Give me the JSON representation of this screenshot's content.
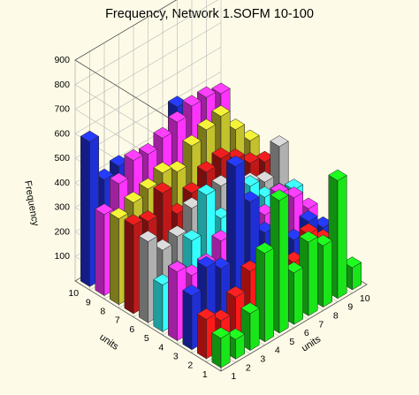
{
  "chart_data": {
    "type": "bar3d",
    "title": "Frequency,  Network 1.SOFM 10-100",
    "xlabel": "units",
    "ylabel": "units",
    "zlabel": "Frequency",
    "x_ticks": [
      "1",
      "2",
      "3",
      "4",
      "5",
      "6",
      "7",
      "8",
      "9",
      "10"
    ],
    "y_ticks": [
      "1",
      "2",
      "3",
      "4",
      "5",
      "6",
      "7",
      "8",
      "9",
      "10"
    ],
    "z_ticks": [
      "100",
      "200",
      "300",
      "400",
      "500",
      "600",
      "700",
      "800",
      "900"
    ],
    "zlim": [
      0,
      900
    ],
    "grid": true,
    "colors": {
      "1": "#ff1a1a",
      "2": "#ff1a1a",
      "3": "#1f2fd6",
      "4": "#19e619",
      "5": "#b33bd9",
      "6": "#b33bd9",
      "7": "#b33bd9",
      "8": "#a7a7a7",
      "9": "#19e619",
      "10": "#ff1a1a"
    },
    "row_colors": [
      "#19e619",
      "#ff1a1a",
      "#1f2fd6",
      "#ff33ff",
      "#33ffff",
      "#b0b0b0",
      "#c01818",
      "#c4c22c",
      "#ff33ff",
      "#1f2fd6"
    ],
    "values": [
      [
        120,
        80,
        150,
        360,
        540,
        210,
        300,
        250,
        480,
        90
      ],
      [
        160,
        120,
        180,
        250,
        180,
        300,
        180,
        260,
        200,
        150
      ],
      [
        220,
        300,
        260,
        640,
        460,
        300,
        280,
        200,
        240,
        180
      ],
      [
        280,
        230,
        240,
        300,
        260,
        340,
        300,
        350,
        300,
        220
      ],
      [
        190,
        210,
        300,
        450,
        320,
        420,
        380,
        300,
        280,
        260
      ],
      [
        330,
        260,
        280,
        360,
        300,
        380,
        360,
        320,
        290,
        400
      ],
      [
        360,
        340,
        420,
        300,
        350,
        400,
        420,
        380,
        330,
        300
      ],
      [
        350,
        380,
        400,
        430,
        400,
        470,
        500,
        520,
        430,
        350
      ],
      [
        330,
        420,
        480,
        470,
        500,
        530,
        560,
        560,
        540,
        350
      ],
      [
        590,
        400,
        420,
        360,
        330,
        420,
        520,
        480,
        430,
        380
      ]
    ]
  }
}
